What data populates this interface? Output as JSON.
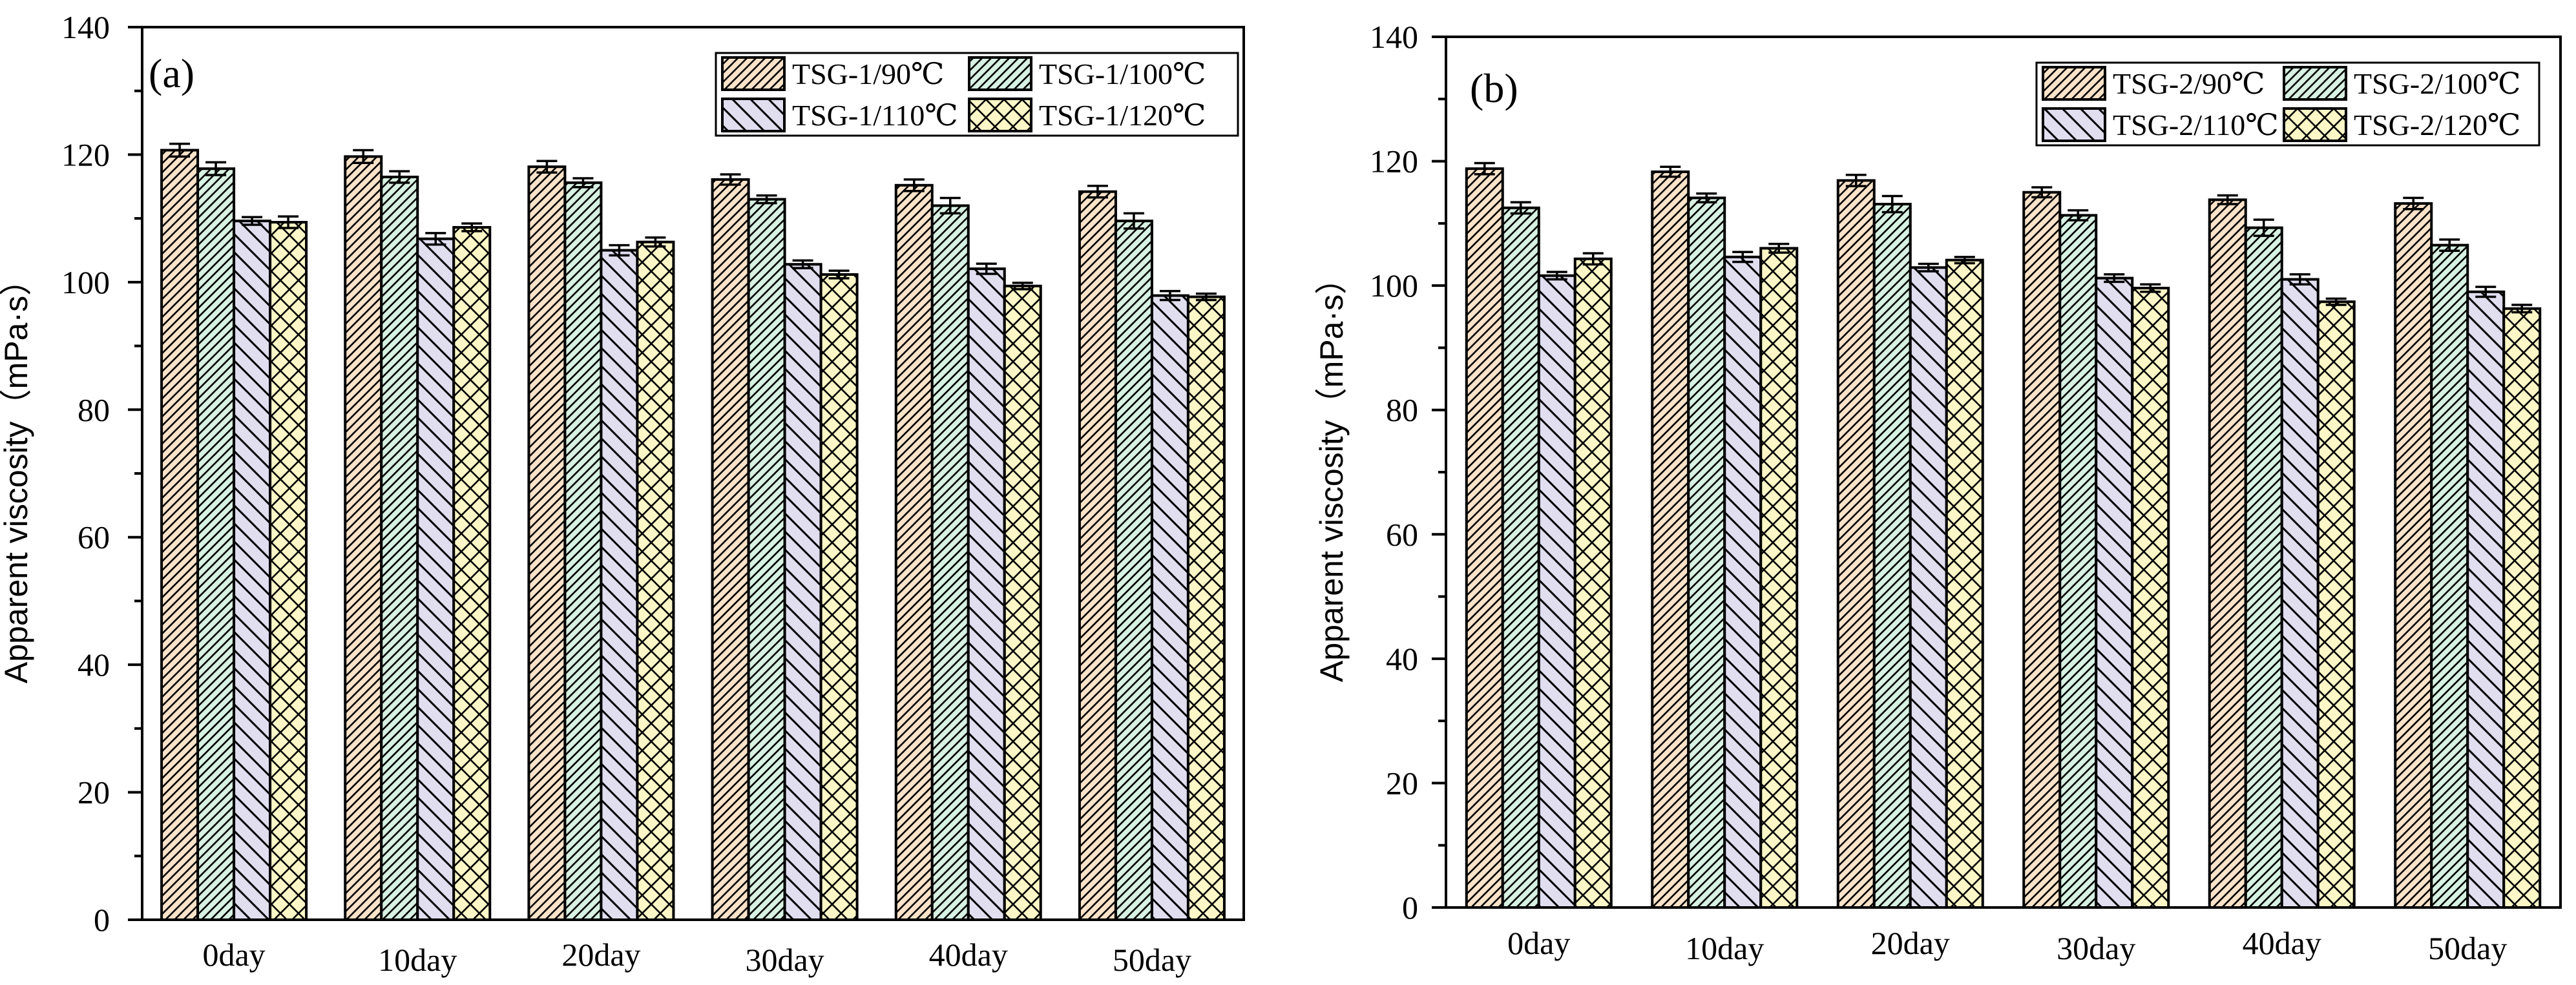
{
  "colors": {
    "s90": "#fbe3c9",
    "s100": "#d7f1e2",
    "s110": "#e1def0",
    "s120": "#fdf7c7",
    "ink": "#000000"
  },
  "chart_data": [
    {
      "type": "bar",
      "panel_label": "(a)",
      "categories": [
        "0day",
        "10day",
        "20day",
        "30day",
        "40day",
        "50day"
      ],
      "ylabel": "Apparent viscosity（mPa·s）",
      "xlabel": "",
      "ylim": [
        0,
        140
      ],
      "yticks": [
        0,
        20,
        40,
        60,
        80,
        100,
        120,
        140
      ],
      "grid": false,
      "legend_position": "top-right",
      "series": [
        {
          "name": "TSG-1/90℃",
          "pattern": "hatch-fine",
          "color": "s90",
          "values": [
            120.7,
            119.7,
            118.1,
            116.1,
            115.2,
            114.2
          ],
          "errors": [
            1.0,
            1.0,
            0.9,
            0.8,
            0.9,
            0.9
          ]
        },
        {
          "name": "TSG-1/100℃",
          "pattern": "hatch-fine",
          "color": "s100",
          "values": [
            117.8,
            116.5,
            115.6,
            113.0,
            112.0,
            109.6
          ],
          "errors": [
            1.0,
            0.9,
            0.7,
            0.6,
            1.2,
            1.2
          ]
        },
        {
          "name": "TSG-1/110℃",
          "pattern": "hatch-wide",
          "color": "s110",
          "values": [
            109.6,
            106.8,
            105.0,
            102.8,
            102.1,
            97.9
          ],
          "errors": [
            0.6,
            0.9,
            0.8,
            0.6,
            0.8,
            0.7
          ]
        },
        {
          "name": "TSG-1/120℃",
          "pattern": "cross",
          "color": "s120",
          "values": [
            109.4,
            108.6,
            106.3,
            101.2,
            99.4,
            97.7
          ],
          "errors": [
            0.9,
            0.6,
            0.7,
            0.6,
            0.5,
            0.5
          ]
        }
      ]
    },
    {
      "type": "bar",
      "panel_label": "(b)",
      "categories": [
        "0day",
        "10day",
        "20day",
        "30day",
        "40day",
        "50day"
      ],
      "ylabel": "Apparent viscosity（mPa·s）",
      "xlabel": "",
      "ylim": [
        0,
        140
      ],
      "yticks": [
        0,
        20,
        40,
        60,
        80,
        100,
        120,
        140
      ],
      "grid": false,
      "legend_position": "top-right",
      "series": [
        {
          "name": "TSG-2/90℃",
          "pattern": "hatch-fine",
          "color": "s90",
          "values": [
            118.8,
            118.3,
            116.9,
            115.0,
            113.8,
            113.2
          ],
          "errors": [
            0.9,
            0.8,
            0.9,
            0.8,
            0.7,
            0.9
          ]
        },
        {
          "name": "TSG-2/100℃",
          "pattern": "hatch-fine",
          "color": "s100",
          "values": [
            112.5,
            114.1,
            113.1,
            111.3,
            109.3,
            106.5
          ],
          "errors": [
            0.9,
            0.7,
            1.3,
            0.8,
            1.3,
            0.9
          ]
        },
        {
          "name": "TSG-2/110℃",
          "pattern": "hatch-wide",
          "color": "s110",
          "values": [
            101.6,
            104.6,
            102.9,
            101.2,
            101.0,
            99.0
          ],
          "errors": [
            0.6,
            0.8,
            0.6,
            0.6,
            0.8,
            0.8
          ]
        },
        {
          "name": "TSG-2/120℃",
          "pattern": "cross",
          "color": "s120",
          "values": [
            104.3,
            106.0,
            104.1,
            99.6,
            97.4,
            96.3
          ],
          "errors": [
            0.9,
            0.7,
            0.5,
            0.6,
            0.5,
            0.6
          ]
        }
      ]
    }
  ]
}
